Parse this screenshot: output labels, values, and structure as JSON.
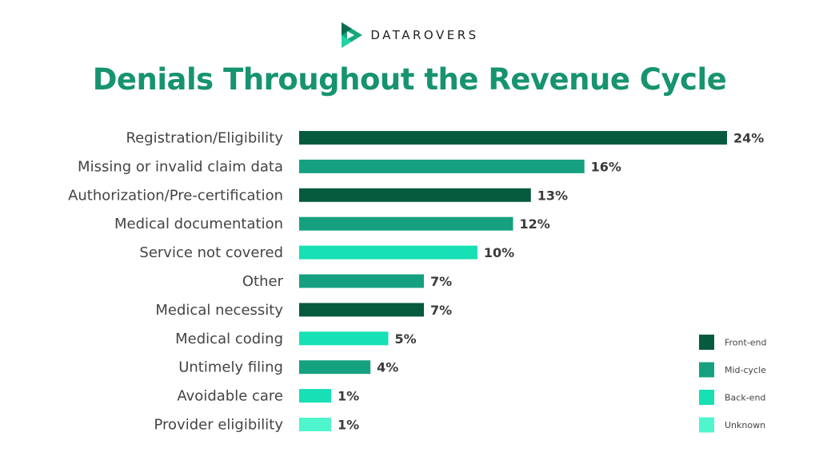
{
  "brand": {
    "name": "DATAROVERS"
  },
  "colors": {
    "title": "#16936f",
    "front_end": "#065b3f",
    "mid_cycle": "#15a180",
    "back_end": "#16e0b4",
    "unknown": "#4ff5cd"
  },
  "chart_data": {
    "type": "bar",
    "orientation": "horizontal",
    "title": "Denials Throughout the Revenue Cycle",
    "xlabel": "",
    "ylabel": "",
    "xlim": [
      0,
      24
    ],
    "grid": false,
    "legend_position": "bottom-right",
    "categories": [
      "Registration/Eligibility",
      "Missing or invalid claim data",
      "Authorization/Pre-certification",
      "Medical documentation",
      "Service not covered",
      "Other",
      "Medical necessity",
      "Medical coding",
      "Untimely filing",
      "Avoidable care",
      "Provider eligibility"
    ],
    "values": [
      24,
      16,
      13,
      12,
      10,
      7,
      7,
      5,
      4,
      1,
      1
    ],
    "value_labels": [
      "24%",
      "16%",
      "13%",
      "12%",
      "10%",
      "7%",
      "7%",
      "5%",
      "4%",
      "1%",
      "1%"
    ],
    "groups": [
      "front_end",
      "mid_cycle",
      "front_end",
      "mid_cycle",
      "back_end",
      "mid_cycle",
      "front_end",
      "back_end",
      "mid_cycle",
      "back_end",
      "unknown"
    ],
    "legend": [
      {
        "key": "front_end",
        "label": "Front-end"
      },
      {
        "key": "mid_cycle",
        "label": "Mid-cycle"
      },
      {
        "key": "back_end",
        "label": "Back-end"
      },
      {
        "key": "unknown",
        "label": "Unknown"
      }
    ]
  }
}
